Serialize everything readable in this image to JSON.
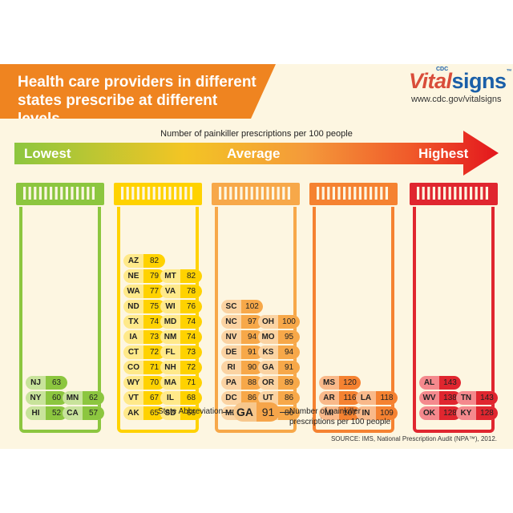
{
  "banner": {
    "title": "Health care providers in different states prescribe at different levels."
  },
  "brand": {
    "cdc": "CDC",
    "vital": "Vital",
    "signs": "signs",
    "tm": "™",
    "url": "www.cdc.gov/vitalsigns"
  },
  "scale": {
    "title": "Number of painkiller prescriptions per 100 people",
    "lowest": "Lowest",
    "average": "Average",
    "highest": "Highest"
  },
  "key": {
    "left_label": "State Abbreviation",
    "abbr": "GA",
    "value": "91",
    "right_label": "Number of painkiller prescriptions per 100 people"
  },
  "source": "SOURCE: IMS, National Prescription Audit (NPA™), 2012.",
  "colors": {
    "lowest": "#8cc63f",
    "low": "#ffd200",
    "average": "#f7a849",
    "high": "#f58231",
    "highest": "#e0262f"
  },
  "chart_data": {
    "type": "table",
    "title": "Number of painkiller prescriptions per 100 people",
    "groups": [
      {
        "name": "Lowest",
        "color_key": "lowest",
        "states": [
          [
            "NJ",
            63
          ],
          [
            "NY",
            60
          ],
          [
            "MN",
            62
          ],
          [
            "HI",
            52
          ],
          [
            "CA",
            57
          ]
        ]
      },
      {
        "name": "",
        "color_key": "low",
        "states": [
          [
            "AZ",
            82
          ],
          [
            "NE",
            79
          ],
          [
            "MT",
            82
          ],
          [
            "WA",
            77
          ],
          [
            "VA",
            78
          ],
          [
            "ND",
            75
          ],
          [
            "WI",
            76
          ],
          [
            "TX",
            74
          ],
          [
            "MD",
            74
          ],
          [
            "IA",
            73
          ],
          [
            "NM",
            74
          ],
          [
            "CT",
            72
          ],
          [
            "FL",
            73
          ],
          [
            "CO",
            71
          ],
          [
            "NH",
            72
          ],
          [
            "WY",
            70
          ],
          [
            "MA",
            71
          ],
          [
            "VT",
            67
          ],
          [
            "IL",
            68
          ],
          [
            "AK",
            65
          ],
          [
            "SD",
            66
          ]
        ]
      },
      {
        "name": "Average",
        "color_key": "average",
        "states": [
          [
            "SC",
            102
          ],
          [
            "NC",
            97
          ],
          [
            "OH",
            100
          ],
          [
            "NV",
            94
          ],
          [
            "MO",
            95
          ],
          [
            "DE",
            91
          ],
          [
            "KS",
            94
          ],
          [
            "RI",
            90
          ],
          [
            "GA",
            91
          ],
          [
            "PA",
            88
          ],
          [
            "OR",
            89
          ],
          [
            "DC",
            86
          ],
          [
            "UT",
            86
          ],
          [
            "ME",
            85
          ],
          [
            "ID",
            86
          ]
        ]
      },
      {
        "name": "",
        "color_key": "high",
        "states": [
          [
            "MS",
            120
          ],
          [
            "AR",
            116
          ],
          [
            "LA",
            118
          ],
          [
            "MI",
            107
          ],
          [
            "IN",
            109
          ]
        ]
      },
      {
        "name": "Highest",
        "color_key": "highest",
        "states": [
          [
            "AL",
            143
          ],
          [
            "WV",
            138
          ],
          [
            "TN",
            143
          ],
          [
            "OK",
            128
          ],
          [
            "KY",
            128
          ]
        ]
      }
    ]
  }
}
